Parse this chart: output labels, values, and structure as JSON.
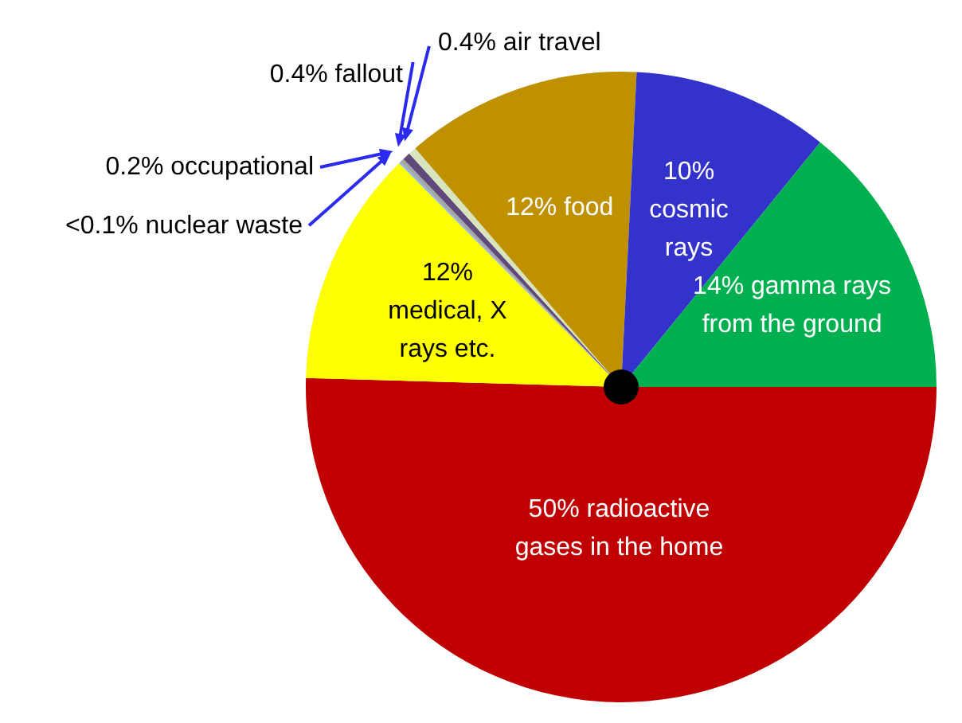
{
  "chart_data": {
    "type": "pie",
    "categories": [
      "radioactive gases in the home",
      "medical, X rays etc.",
      "nuclear waste",
      "occupational",
      "fallout",
      "air travel",
      "food",
      "cosmic rays",
      "gamma rays from the ground"
    ],
    "values": [
      50,
      12,
      0.1,
      0.2,
      0.4,
      0.4,
      12,
      10,
      14
    ],
    "value_labels": [
      "50%",
      "12%",
      "<0.1%",
      "0.2%",
      "0.4%",
      "0.4%",
      "12%",
      "10%",
      "14%"
    ],
    "colors": [
      "#c00000",
      "#ffff00",
      "#8db4e2",
      "#a5a5a5",
      "#604a7b",
      "#d7e4bd",
      "#bf9000",
      "#3333cc",
      "#00b050"
    ]
  }
}
